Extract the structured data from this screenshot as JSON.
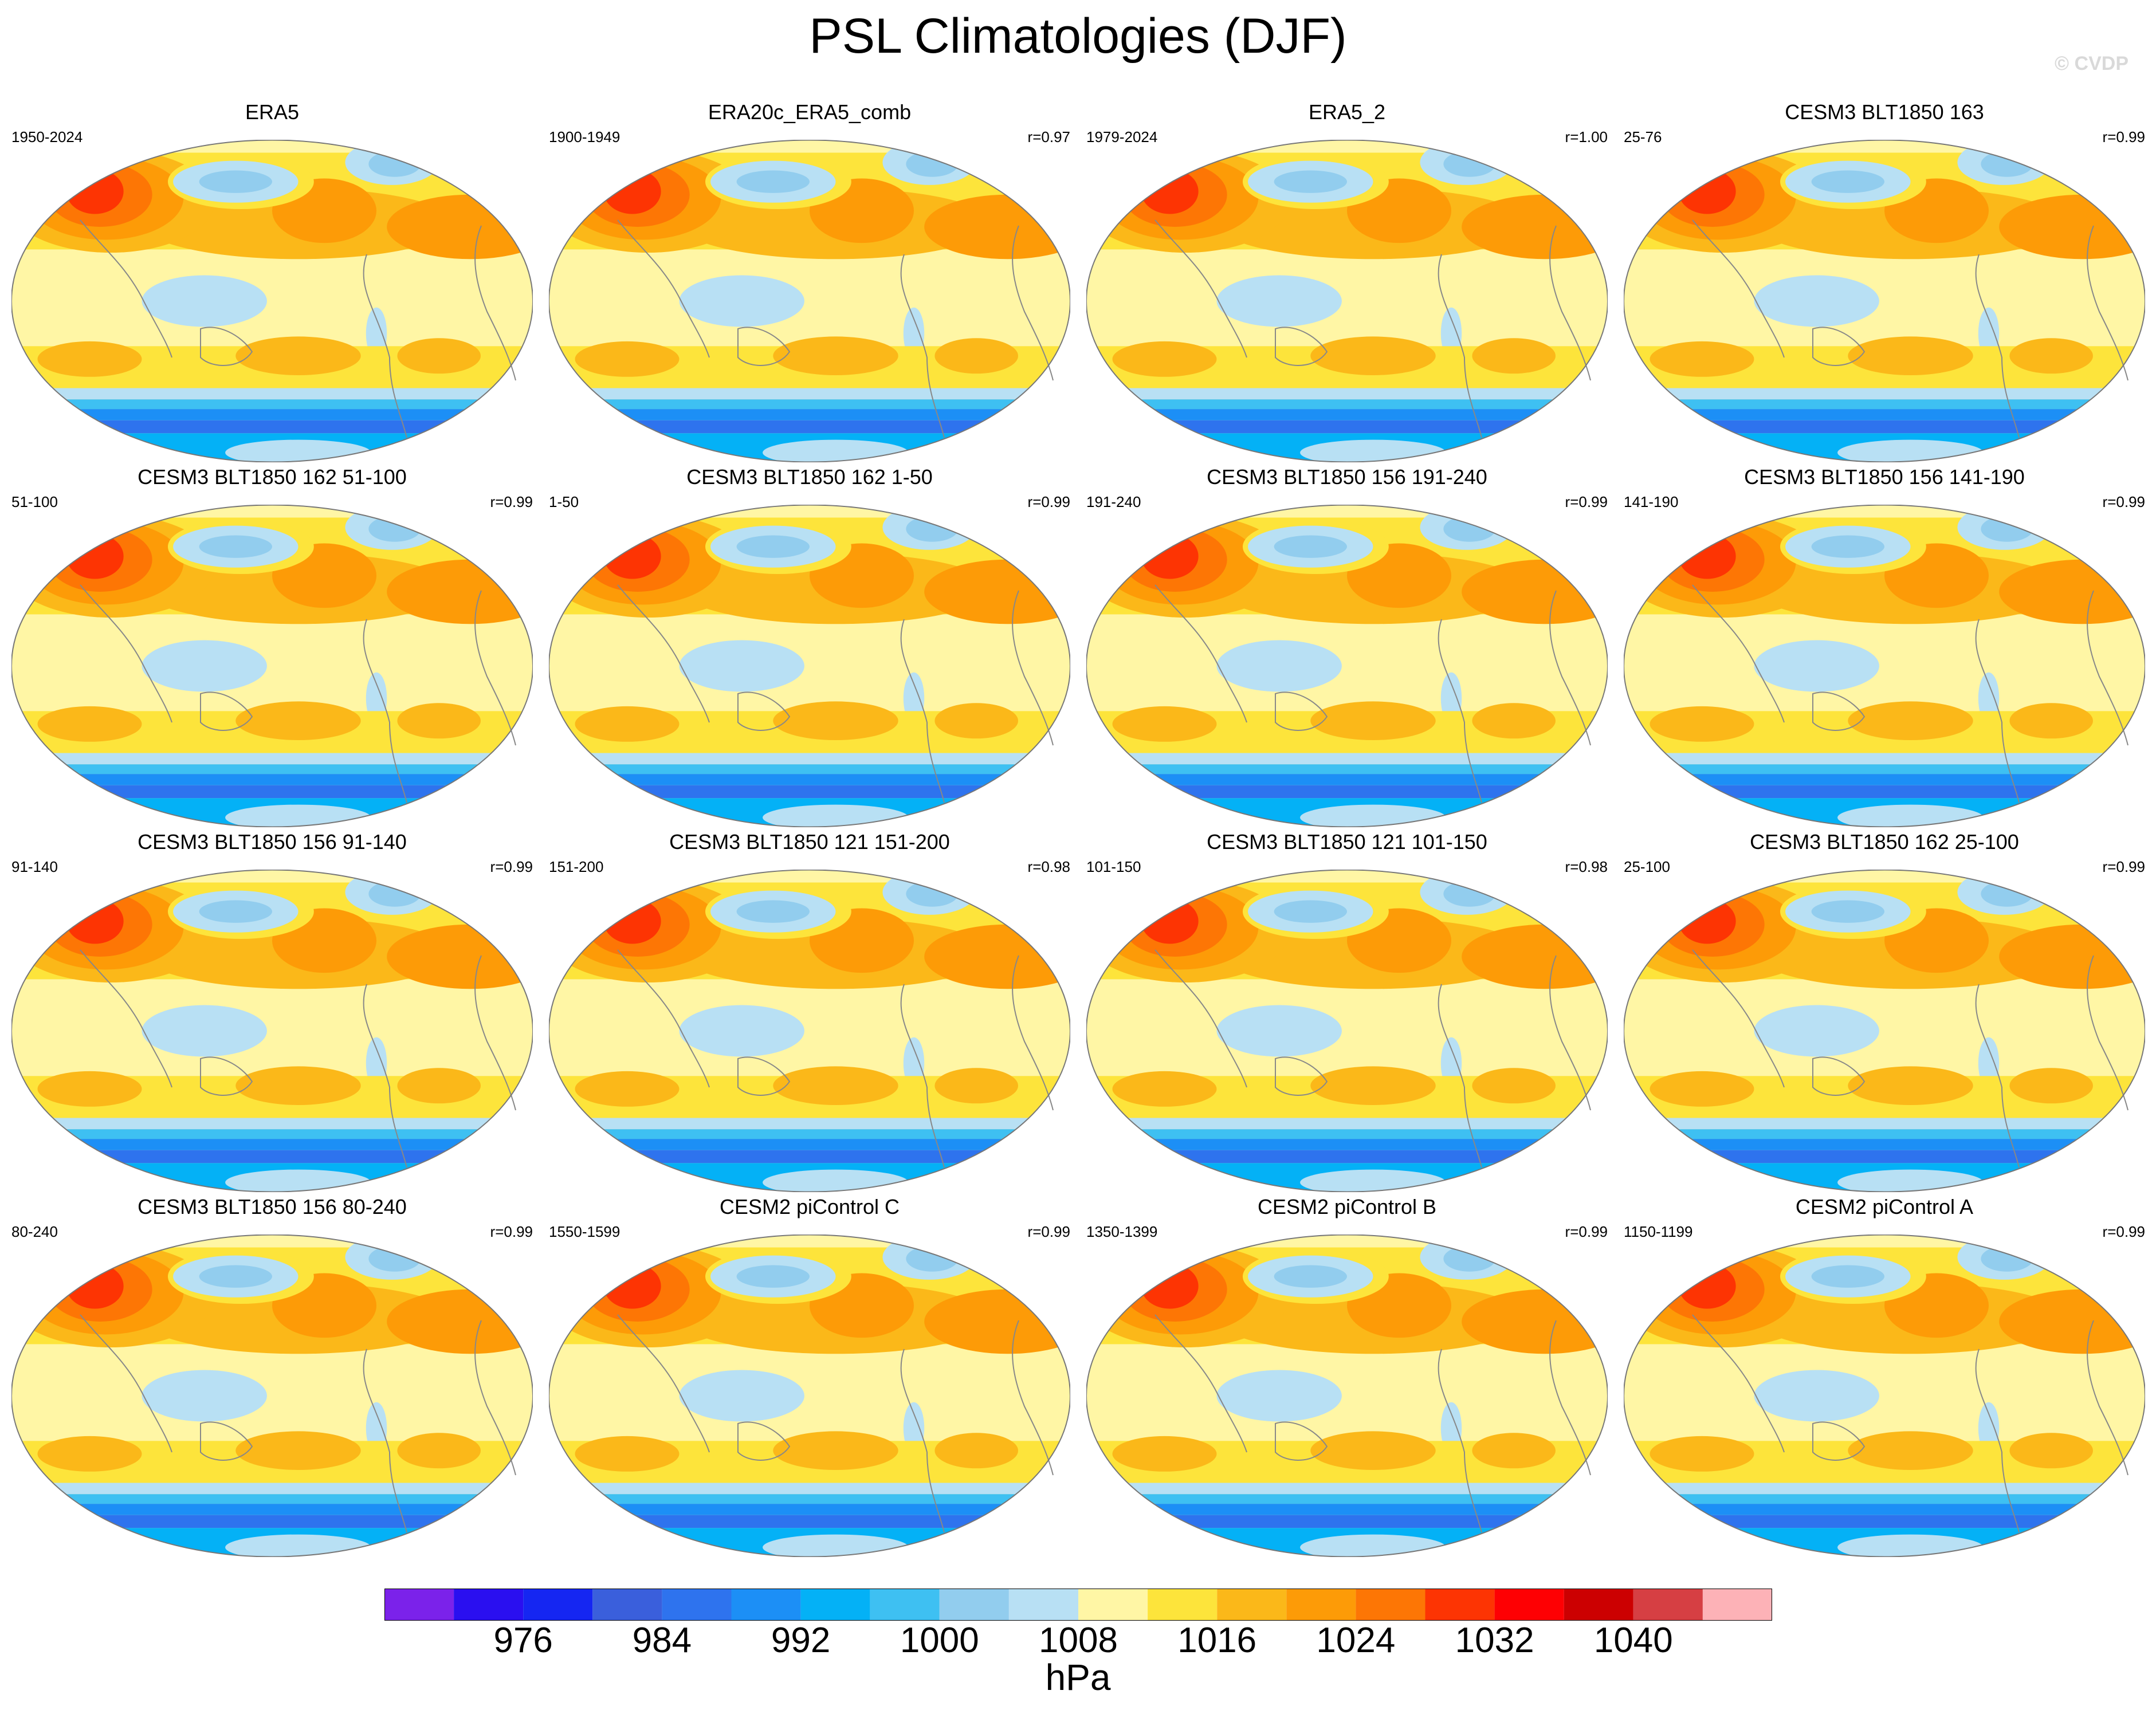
{
  "title": "PSL Climatologies (DJF)",
  "watermark": "© CVDP",
  "chart_data": {
    "type": "heatmap",
    "title": "PSL Climatologies (DJF)",
    "variable": "PSL",
    "season": "DJF",
    "units": "hPa",
    "colorbar": {
      "levels": [
        972,
        976,
        980,
        984,
        988,
        992,
        996,
        1000,
        1004,
        1008,
        1012,
        1016,
        1020,
        1024,
        1028,
        1032,
        1036,
        1040,
        1044
      ],
      "tick_labels": [
        "976",
        "984",
        "992",
        "1000",
        "1008",
        "1016",
        "1024",
        "1032",
        "1040"
      ],
      "colors": [
        "#7b22ea",
        "#2a0ff0",
        "#1526f2",
        "#3a5fdc",
        "#2e73ee",
        "#1c8ff6",
        "#04b1f6",
        "#3ec0f2",
        "#92cdee",
        "#b8e0f4",
        "#fff6a5",
        "#fde43b",
        "#fbb819",
        "#fd9b07",
        "#fd7605",
        "#fd3403",
        "#fe0003",
        "#cc0001",
        "#d63f43",
        "#fdb2b7"
      ]
    },
    "panels": [
      {
        "name": "ERA5",
        "years": "1950-2024",
        "corr": ""
      },
      {
        "name": "ERA20c_ERA5_comb",
        "years": "1900-1949",
        "corr": "r=0.97"
      },
      {
        "name": "ERA5_2",
        "years": "1979-2024",
        "corr": "r=1.00"
      },
      {
        "name": "CESM3 BLT1850 163",
        "years": "25-76",
        "corr": "r=0.99"
      },
      {
        "name": "CESM3 BLT1850 162 51-100",
        "years": "51-100",
        "corr": "r=0.99"
      },
      {
        "name": "CESM3 BLT1850 162 1-50",
        "years": "1-50",
        "corr": "r=0.99"
      },
      {
        "name": "CESM3 BLT1850 156 191-240",
        "years": "191-240",
        "corr": "r=0.99"
      },
      {
        "name": "CESM3 BLT1850 156 141-190",
        "years": "141-190",
        "corr": "r=0.99"
      },
      {
        "name": "CESM3 BLT1850 156 91-140",
        "years": "91-140",
        "corr": "r=0.99"
      },
      {
        "name": "CESM3 BLT1850 121 151-200",
        "years": "151-200",
        "corr": "r=0.98"
      },
      {
        "name": "CESM3 BLT1850 121 101-150",
        "years": "101-150",
        "corr": "r=0.98"
      },
      {
        "name": "CESM3 BLT1850 162 25-100",
        "years": "25-100",
        "corr": "r=0.99"
      },
      {
        "name": "CESM3 BLT1850 156 80-240",
        "years": "80-240",
        "corr": "r=0.99"
      },
      {
        "name": "CESM2 piControl C",
        "years": "1550-1599",
        "corr": "r=0.99"
      },
      {
        "name": "CESM2 piControl B",
        "years": "1350-1399",
        "corr": "r=0.99"
      },
      {
        "name": "CESM2 piControl A",
        "years": "1150-1199",
        "corr": "r=0.99"
      }
    ]
  }
}
